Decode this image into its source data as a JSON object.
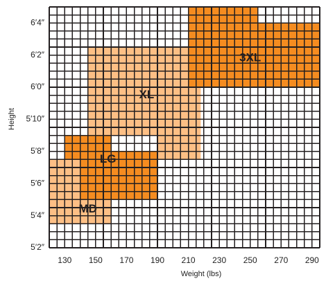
{
  "chart_data": {
    "type": "heatmap",
    "title": "",
    "xlabel": "Weight (lbs)",
    "ylabel": "Height",
    "x_ticks": [
      {
        "value": 130,
        "label": "130"
      },
      {
        "value": 150,
        "label": "150"
      },
      {
        "value": 170,
        "label": "170"
      },
      {
        "value": 190,
        "label": "190"
      },
      {
        "value": 210,
        "label": "210"
      },
      {
        "value": 230,
        "label": "230"
      },
      {
        "value": 250,
        "label": "250"
      },
      {
        "value": 270,
        "label": "270"
      },
      {
        "value": 290,
        "label": "290"
      }
    ],
    "y_ticks": [
      {
        "value": 62,
        "label": "5′2″"
      },
      {
        "value": 64,
        "label": "5′4″"
      },
      {
        "value": 66,
        "label": "5′6″"
      },
      {
        "value": 68,
        "label": "5′8″"
      },
      {
        "value": 70,
        "label": "5′10″"
      },
      {
        "value": 72,
        "label": "6′0″"
      },
      {
        "value": 74,
        "label": "6′2″"
      },
      {
        "value": 76,
        "label": "6′4″"
      }
    ],
    "xlim": [
      120,
      295
    ],
    "ylim": [
      62,
      77
    ],
    "grid": true,
    "grid_step": {
      "x": 5,
      "y": 0.5
    },
    "colors": {
      "light": "#fdbf85",
      "dark": "#f58c20",
      "grid": "#231f20"
    },
    "regions": [
      {
        "label": "MD",
        "color": "light",
        "label_at": [
          145,
          64.4
        ],
        "rects": [
          {
            "x": [
              120,
              160
            ],
            "y": [
              63.5,
              67.5
            ]
          }
        ]
      },
      {
        "label": "LG",
        "color": "dark",
        "label_at": [
          158,
          67.5
        ],
        "rects": [
          {
            "x": [
              130,
              160
            ],
            "y": [
              67.5,
              69
            ]
          },
          {
            "x": [
              140,
              190
            ],
            "y": [
              65,
              67.5
            ]
          },
          {
            "x": [
              160,
              190
            ],
            "y": [
              67.5,
              68
            ]
          }
        ]
      },
      {
        "label": "XL",
        "color": "light",
        "label_at": [
          183,
          71.5
        ],
        "rects": [
          {
            "x": [
              145,
              210
            ],
            "y": [
              72.5,
              74.5
            ]
          },
          {
            "x": [
              145,
              218
            ],
            "y": [
              69,
              72.5
            ]
          },
          {
            "x": [
              190,
              218
            ],
            "y": [
              67.5,
              69
            ]
          }
        ]
      },
      {
        "label": "3XL",
        "color": "dark",
        "label_at": [
          250,
          73.8
        ],
        "rects": [
          {
            "x": [
              210,
              255
            ],
            "y": [
              76,
              77
            ]
          },
          {
            "x": [
              210,
              295
            ],
            "y": [
              72,
              76
            ]
          }
        ]
      }
    ]
  }
}
